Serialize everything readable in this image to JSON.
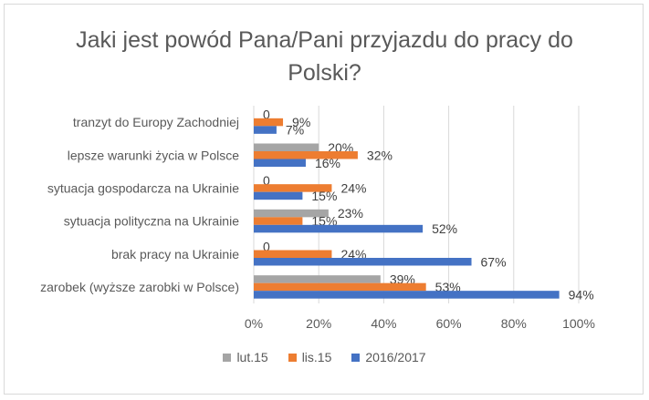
{
  "chart_data": {
    "type": "bar",
    "orientation": "horizontal",
    "title": "Jaki jest powód Pana/Pani przyjazdu do pracy  do Polski?",
    "title_lines": [
      "Jaki jest powód Pana/Pani przyjazdu do pracy  do",
      "Polski?"
    ],
    "categories": [
      "tranzyt do Europy Zachodniej",
      "lepsze warunki życia w Polsce",
      "sytuacja gospodarcza na Ukrainie",
      "sytuacja polityczna na Ukrainie",
      "brak pracy na Ukrainie",
      "zarobek (wyższe zarobki w Polsce)"
    ],
    "series": [
      {
        "name": "lut.15",
        "color": "#a5a5a5",
        "values": [
          0,
          20,
          0,
          23,
          0,
          39
        ],
        "labels": [
          "0",
          "20%",
          "0",
          "23%",
          "0",
          "39%"
        ]
      },
      {
        "name": "lis.15",
        "color": "#ed7d31",
        "values": [
          9,
          32,
          24,
          15,
          24,
          53
        ],
        "labels": [
          "9%",
          "32%",
          "24%",
          "15%",
          "24%",
          "53%"
        ]
      },
      {
        "name": "2016/2017",
        "color": "#4472c4",
        "values": [
          7,
          16,
          15,
          52,
          67,
          94
        ],
        "labels": [
          "7%",
          "16%",
          "15%",
          "52%",
          "67%",
          "94%"
        ]
      }
    ],
    "xlim": [
      0,
      100
    ],
    "xticks": [
      "0%",
      "20%",
      "40%",
      "60%",
      "80%",
      "100%"
    ],
    "grid": true,
    "legend_position": "bottom"
  }
}
